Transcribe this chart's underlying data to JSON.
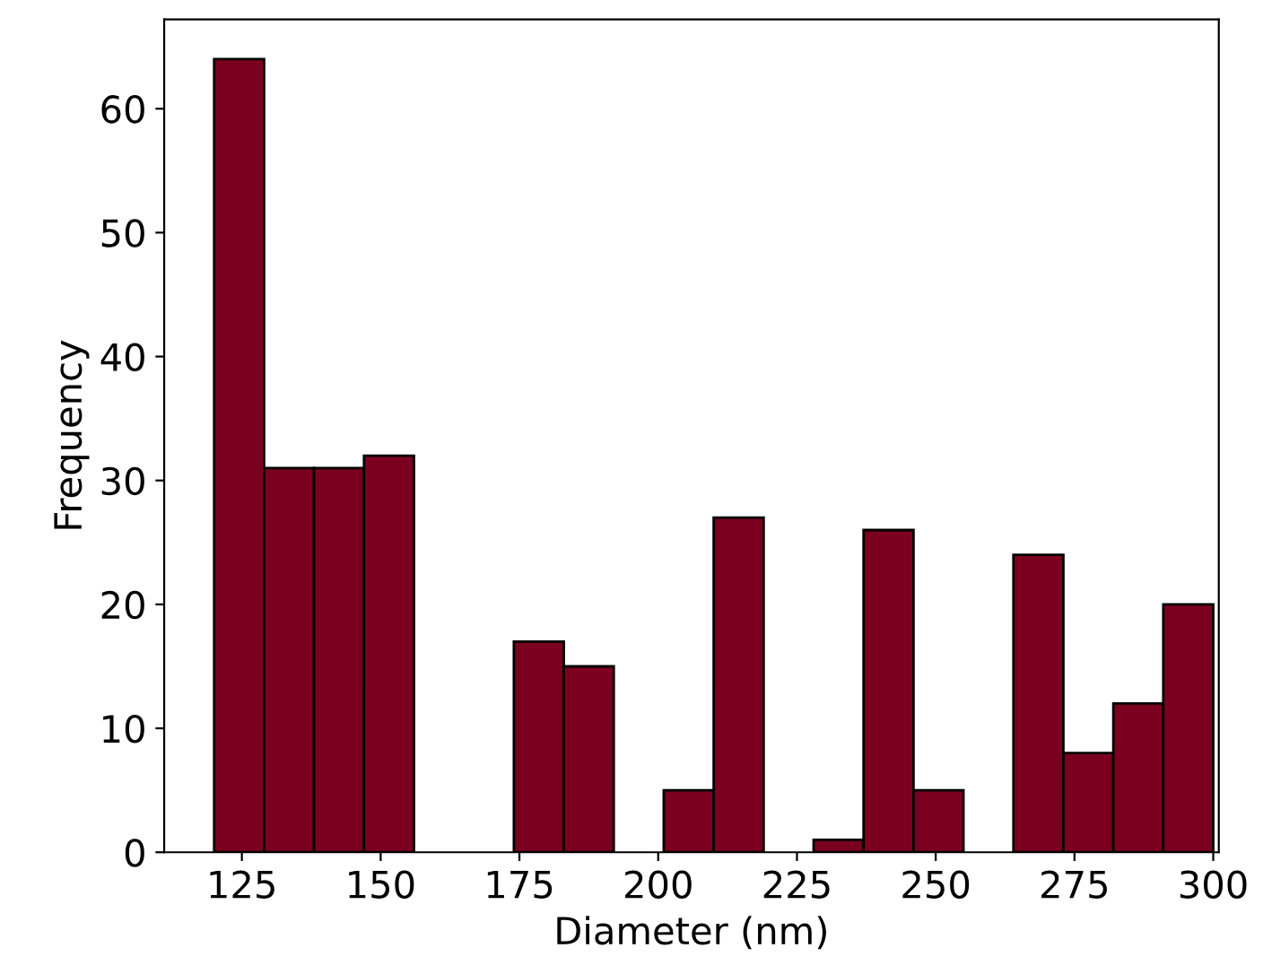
{
  "chart_data": {
    "type": "histogram",
    "xlabel": "Diameter (nm)",
    "ylabel": "Frequency",
    "bins": [
      120,
      129,
      138,
      147,
      156,
      165,
      174,
      183,
      192,
      201,
      210,
      219,
      228,
      237,
      246,
      255,
      264,
      273,
      282,
      291,
      300
    ],
    "values": [
      64,
      31,
      31,
      32,
      0,
      0,
      17,
      15,
      0,
      5,
      27,
      0,
      1,
      26,
      5,
      0,
      24,
      8,
      12,
      20
    ],
    "color": "#7b0020",
    "xlim": [
      111,
      301
    ],
    "ylim": [
      0,
      67.2
    ],
    "xticks": [
      125,
      150,
      175,
      200,
      225,
      250,
      275,
      300
    ],
    "yticks": [
      0,
      10,
      20,
      30,
      40,
      50,
      60
    ],
    "grid": false
  }
}
